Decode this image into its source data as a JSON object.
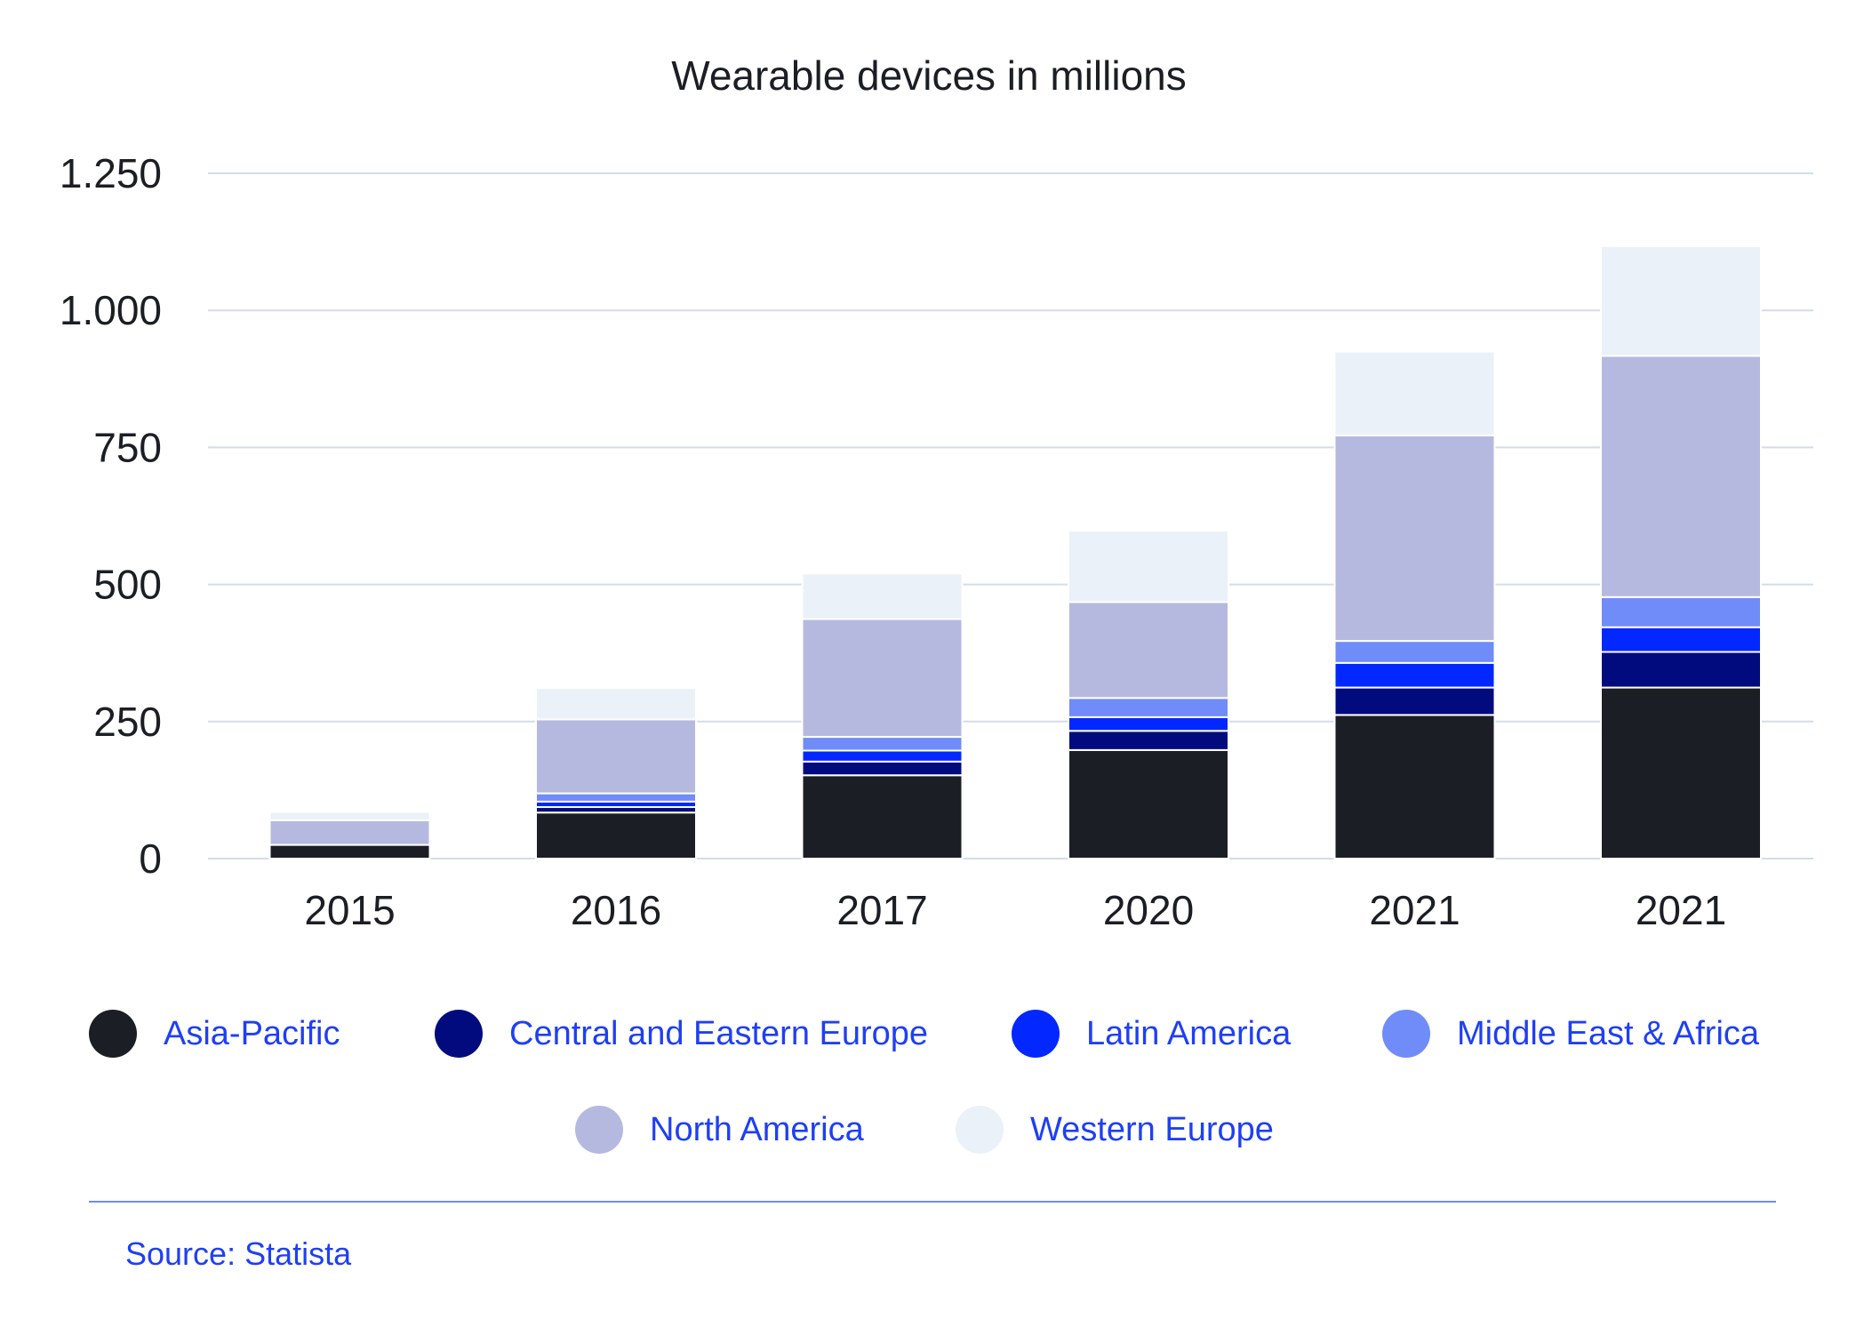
{
  "chart_data": {
    "type": "bar",
    "stacked": true,
    "title": "Wearable devices in millions",
    "xlabel": "",
    "ylabel": "",
    "ylim": [
      0,
      1250
    ],
    "yticks": [
      0,
      250,
      500,
      750,
      1000,
      1250
    ],
    "ytick_labels": [
      "0",
      "250",
      "500",
      "750",
      "1.000",
      "1.250"
    ],
    "grid": true,
    "legend_position": "bottom",
    "categories": [
      "2015",
      "2016",
      "2017",
      "2020",
      "2021",
      "2021"
    ],
    "series": [
      {
        "name": "Asia-Pacific",
        "color": "#1b1e24",
        "values": [
          25,
          84,
          152,
          198,
          262,
          312
        ]
      },
      {
        "name": "Central and Eastern Europe",
        "color": "#020b7e",
        "values": [
          0,
          10,
          25,
          35,
          50,
          65
        ]
      },
      {
        "name": "Latin America",
        "color": "#0327ff",
        "values": [
          0,
          10,
          20,
          25,
          45,
          45
        ]
      },
      {
        "name": "Middle East & Africa",
        "color": "#6f8cf8",
        "values": [
          0,
          15,
          25,
          35,
          40,
          55
        ]
      },
      {
        "name": "North America",
        "color": "#b6b9df",
        "values": [
          45,
          135,
          215,
          175,
          375,
          440
        ]
      },
      {
        "name": "Western Europe",
        "color": "#ebf1f8",
        "values": [
          15,
          57,
          83,
          130,
          153,
          200
        ]
      }
    ]
  },
  "source": "Source: Statista"
}
